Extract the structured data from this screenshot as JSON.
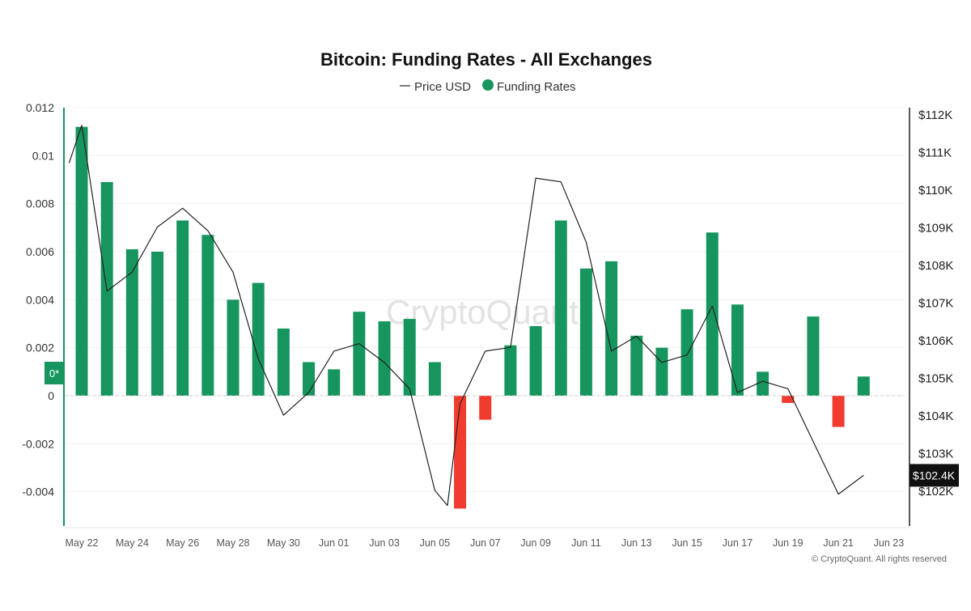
{
  "chart_data": {
    "type": "bar",
    "title": "Bitcoin: Funding Rates - All Exchanges",
    "legend": {
      "placement": "top-center",
      "items": [
        {
          "symbol": "—",
          "label": "Price USD"
        },
        {
          "symbol": "●",
          "label": "Funding Rates"
        }
      ]
    },
    "colors": {
      "positive": "#16955e",
      "negative": "#f23b2f",
      "price_line": "#222222",
      "axis_accent": "#16955e",
      "price_badge": "#111111",
      "grid": "#f0f0f0"
    },
    "grid": true,
    "x_ticks": [
      "May 22",
      "May 24",
      "May 26",
      "May 28",
      "May 30",
      "Jun 01",
      "Jun 03",
      "Jun 05",
      "Jun 07",
      "Jun 09",
      "Jun 11",
      "Jun 13",
      "Jun 15",
      "Jun 17",
      "Jun 19",
      "Jun 21",
      "Jun 23"
    ],
    "y_left": {
      "ticks": [
        "0.012",
        "0.01",
        "0.008",
        "0.006",
        "0.004",
        "0.002",
        "0",
        "-0.002",
        "-0.004"
      ],
      "range": [
        -0.0055,
        0.012
      ],
      "zero_marker": "0*"
    },
    "y_right": {
      "ticks": [
        "$112K",
        "$111K",
        "$110K",
        "$109K",
        "$108K",
        "$107K",
        "$106K",
        "$105K",
        "$104K",
        "$103K",
        "$102K"
      ],
      "range": [
        101300,
        112000
      ],
      "current_label": "$102.4K"
    },
    "series": [
      {
        "name": "Funding Rates",
        "kind": "bar",
        "x": [
          0,
          1,
          2,
          3,
          4,
          5,
          6,
          7,
          8,
          9,
          10,
          11,
          12,
          13,
          14,
          15,
          16,
          17,
          18,
          19,
          20,
          21,
          22,
          23,
          24,
          25,
          26,
          27,
          28,
          29,
          30,
          31
        ],
        "values": [
          0.0112,
          0.0089,
          0.0061,
          0.006,
          0.0073,
          0.0067,
          0.004,
          0.0047,
          0.0028,
          0.0014,
          0.0011,
          0.0035,
          0.0031,
          0.0032,
          0.0014,
          -0.0047,
          -0.001,
          0.0021,
          0.0029,
          0.0073,
          0.0053,
          0.0056,
          0.0025,
          0.002,
          0.0036,
          0.0068,
          0.0038,
          0.001,
          -0.0003,
          0.0033,
          -0.0013,
          0.0008
        ]
      },
      {
        "name": "Price USD",
        "kind": "line",
        "x": [
          -0.5,
          0,
          1,
          2,
          3,
          4,
          5,
          6,
          7,
          8,
          9,
          10,
          11,
          12,
          13,
          14,
          14.5,
          15,
          16,
          17,
          18,
          19,
          20,
          21,
          22,
          23,
          24,
          25,
          26,
          27,
          28,
          29,
          30,
          31
        ],
        "values": [
          110700,
          111700,
          107300,
          107800,
          109000,
          109500,
          108900,
          107800,
          105500,
          104000,
          104600,
          105700,
          105900,
          105400,
          104700,
          102000,
          101600,
          104300,
          105700,
          105800,
          110300,
          110200,
          108600,
          105700,
          106100,
          105400,
          105600,
          106900,
          104600,
          104900,
          104700,
          103300,
          101900,
          102400
        ]
      }
    ]
  },
  "watermark": "CryptoQuant",
  "copyright": "© CryptoQuant. All rights reserved"
}
